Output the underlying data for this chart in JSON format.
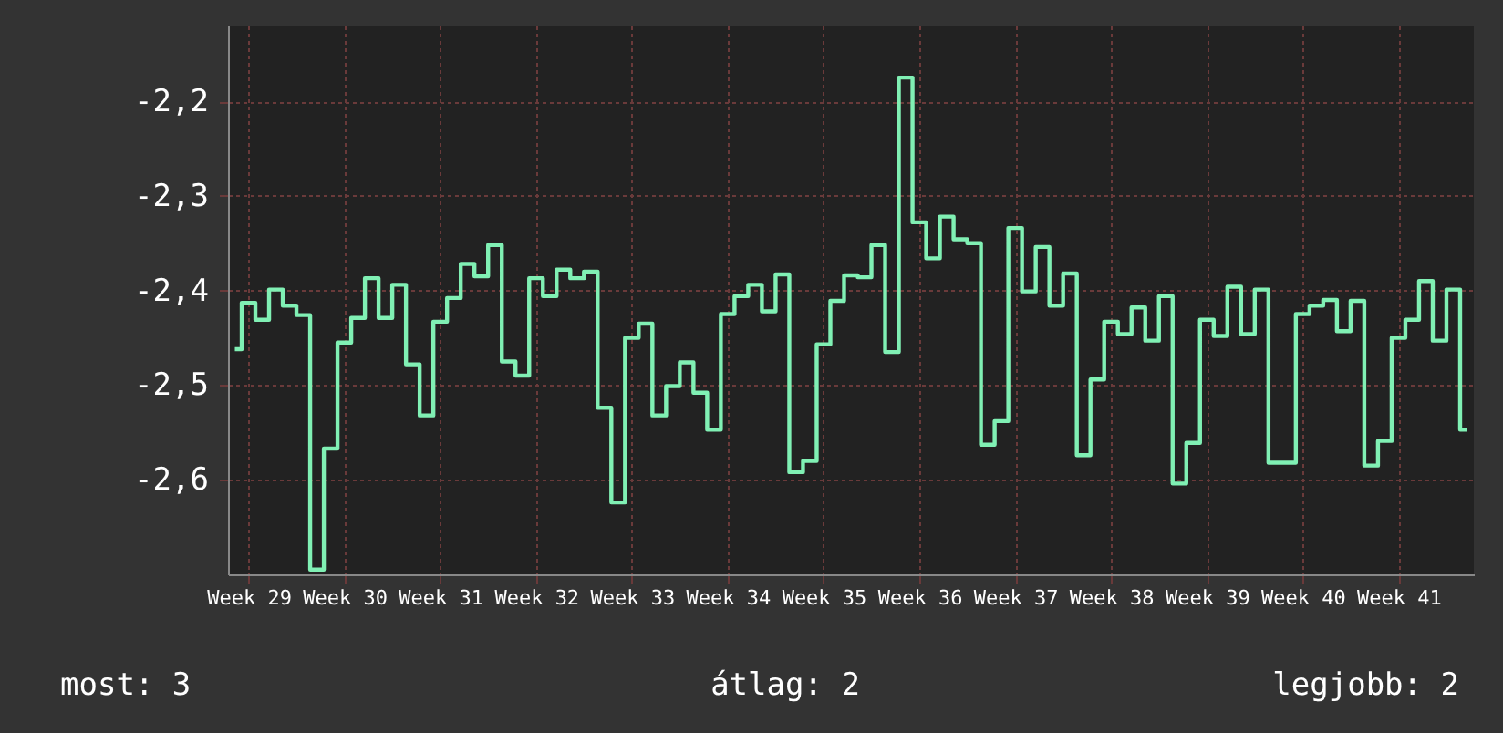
{
  "chart_data": {
    "type": "step",
    "categories": [
      null,
      "Week 29",
      null,
      null,
      null,
      null,
      null,
      null,
      "Week 30",
      null,
      null,
      null,
      null,
      null,
      null,
      "Week 31",
      null,
      null,
      null,
      null,
      null,
      null,
      "Week 32",
      null,
      null,
      null,
      null,
      null,
      null,
      "Week 33",
      null,
      null,
      null,
      null,
      null,
      null,
      "Week 34",
      null,
      null,
      null,
      null,
      null,
      null,
      "Week 35",
      null,
      null,
      null,
      null,
      null,
      null,
      "Week 36",
      null,
      null,
      null,
      null,
      null,
      null,
      "Week 37",
      null,
      null,
      null,
      null,
      null,
      null,
      "Week 38",
      null,
      null,
      null,
      null,
      null,
      null,
      "Week 39",
      null,
      null,
      null,
      null,
      null,
      null,
      "Week 40",
      null,
      null,
      null,
      null,
      null,
      null,
      "Week 41",
      null,
      null,
      null,
      null,
      null
    ],
    "series": [
      {
        "color": "#80f0b4",
        "values": [
          -2.462,
          -2.413,
          -2.431,
          -2.399,
          -2.416,
          -2.426,
          -2.695,
          -2.567,
          -2.455,
          -2.429,
          -2.387,
          -2.429,
          -2.394,
          -2.478,
          -2.532,
          -2.433,
          -2.408,
          -2.372,
          -2.385,
          -2.352,
          -2.475,
          -2.49,
          -2.387,
          -2.406,
          -2.378,
          -2.387,
          -2.38,
          -2.524,
          -2.624,
          -2.45,
          -2.435,
          -2.532,
          -2.501,
          -2.476,
          -2.508,
          -2.547,
          -2.425,
          -2.406,
          -2.394,
          -2.422,
          -2.383,
          -2.592,
          -2.58,
          -2.457,
          -2.411,
          -2.384,
          -2.386,
          -2.352,
          -2.465,
          -2.175,
          -2.328,
          -2.366,
          -2.322,
          -2.346,
          -2.35,
          -2.563,
          -2.538,
          -2.334,
          -2.401,
          -2.354,
          -2.416,
          -2.382,
          -2.574,
          -2.494,
          -2.433,
          -2.446,
          -2.418,
          -2.453,
          -2.406,
          -2.604,
          -2.561,
          -2.431,
          -2.448,
          -2.396,
          -2.446,
          -2.399,
          -2.582,
          -2.582,
          -2.425,
          -2.416,
          -2.41,
          -2.443,
          -2.411,
          -2.585,
          -2.559,
          -2.45,
          -2.431,
          -2.39,
          -2.453,
          -2.399,
          -2.547
        ]
      }
    ],
    "ylim": [
      -2.7,
      -2.12
    ],
    "yticks": [
      {
        "value": -2.2,
        "label": "-2,2"
      },
      {
        "value": -2.3,
        "label": "-2,3"
      },
      {
        "value": -2.4,
        "label": "-2,4"
      },
      {
        "value": -2.5,
        "label": "-2,5"
      },
      {
        "value": -2.6,
        "label": "-2,6"
      }
    ],
    "grid": true,
    "line_style": "solid",
    "marker": "none",
    "annotations": [
      "most: 3",
      "átlag: 2",
      "legjobb: 2"
    ]
  }
}
